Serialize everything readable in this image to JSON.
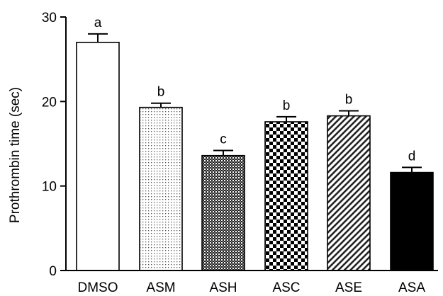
{
  "chart_data": {
    "type": "bar",
    "title": "",
    "xlabel": "",
    "ylabel": "Prothrombin time (sec)",
    "ylim": [
      0,
      30
    ],
    "yticks": [
      0,
      10,
      20,
      30
    ],
    "categories": [
      "DMSO",
      "ASM",
      "ASH",
      "ASC",
      "ASE",
      "ASA"
    ],
    "values": [
      27.0,
      19.3,
      13.6,
      17.6,
      18.3,
      11.6
    ],
    "errors": [
      1.0,
      0.5,
      0.6,
      0.6,
      0.6,
      0.6
    ],
    "significance": [
      "a",
      "b",
      "c",
      "b",
      "b",
      "d"
    ],
    "patterns": [
      "white",
      "fine-dots",
      "dense-grid",
      "checker",
      "diagonal-hatch",
      "solid-black"
    ],
    "grid": false
  }
}
